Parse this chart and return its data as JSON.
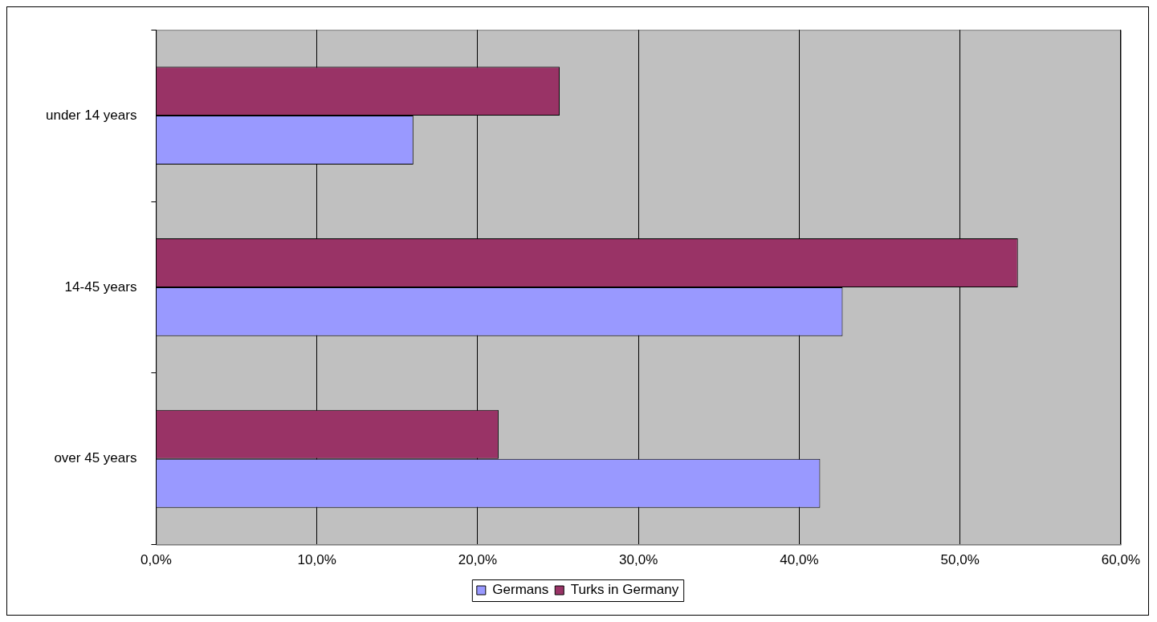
{
  "chart_data": {
    "type": "bar",
    "orientation": "horizontal",
    "categories": [
      "under 14 years",
      "14-45 years",
      "over 45 years"
    ],
    "series": [
      {
        "name": "Germans",
        "color": "#9999ff",
        "values": [
          16.0,
          42.7,
          41.3
        ]
      },
      {
        "name": "Turks in Germany",
        "color": "#993366",
        "values": [
          25.1,
          53.6,
          21.3
        ]
      }
    ],
    "xlim": [
      0,
      60
    ],
    "xticks": [
      {
        "value": 0,
        "label": "0,0%"
      },
      {
        "value": 10,
        "label": "10,0%"
      },
      {
        "value": 20,
        "label": "20,0%"
      },
      {
        "value": 30,
        "label": "30,0%"
      },
      {
        "value": 40,
        "label": "40,0%"
      },
      {
        "value": 50,
        "label": "50,0%"
      },
      {
        "value": 60,
        "label": "60,0%"
      }
    ],
    "grid": "x",
    "legend": "bottom"
  }
}
